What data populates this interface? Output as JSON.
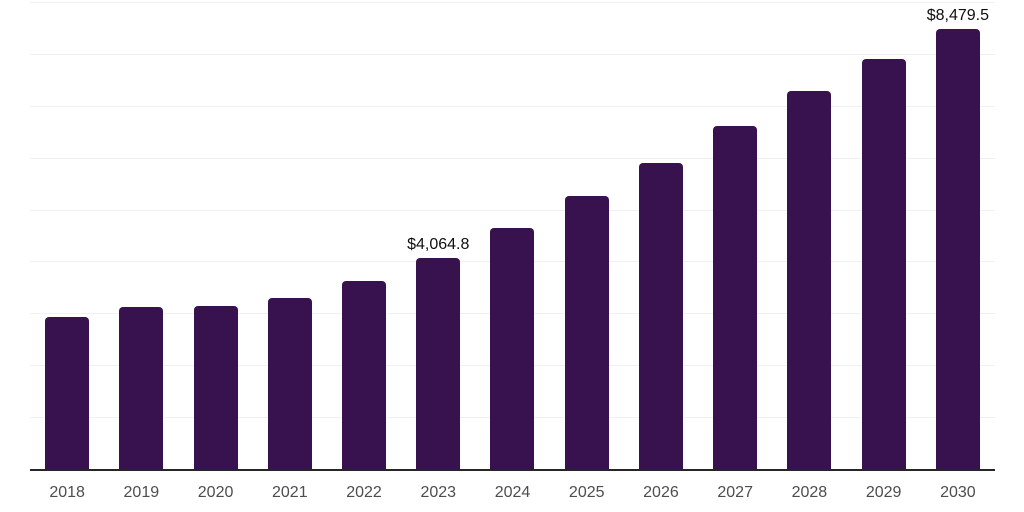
{
  "chart_data": {
    "type": "bar",
    "title": "",
    "xlabel": "",
    "ylabel": "",
    "categories": [
      "2018",
      "2019",
      "2020",
      "2021",
      "2022",
      "2023",
      "2024",
      "2025",
      "2026",
      "2027",
      "2028",
      "2029",
      "2030"
    ],
    "values": [
      2930,
      3120,
      3150,
      3290,
      3630,
      4064.8,
      4650,
      5265,
      5900,
      6605,
      7290,
      7900,
      8479.5
    ],
    "bar_labels": [
      "",
      "",
      "",
      "",
      "",
      "$4,064.8",
      "",
      "",
      "",
      "",
      "",
      "",
      "$8,479.5"
    ],
    "ylim": [
      0,
      9000
    ],
    "gridline_step": 1000,
    "grid": true,
    "legend": false,
    "colors": {
      "bar_fill": "#38124E",
      "data_label_text": "#0f0f0f",
      "tick_label_text": "#4d4d4d",
      "axis_line": "#262626",
      "gridline": "#f1f1f1",
      "background": "#ffffff"
    }
  }
}
